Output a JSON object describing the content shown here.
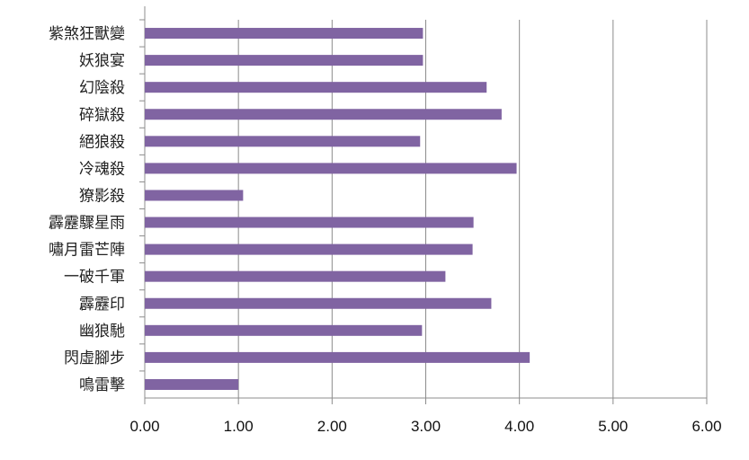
{
  "chart_data": {
    "type": "bar",
    "orientation": "horizontal",
    "title": "",
    "xlabel": "",
    "ylabel": "",
    "categories": [
      "紫煞狂獸變",
      "妖狼宴",
      "幻陰殺",
      "碎獄殺",
      "絕狼殺",
      "冷魂殺",
      "獠影殺",
      "霹靂驟星雨",
      "嘯月雷芒陣",
      "一破千軍",
      "霹靂印",
      "幽狼馳",
      "閃虛腳步",
      "鳴雷擊"
    ],
    "values": [
      2.97,
      2.97,
      3.65,
      3.81,
      2.94,
      3.97,
      1.05,
      3.51,
      3.5,
      3.21,
      3.7,
      2.96,
      4.11,
      1.0
    ],
    "xlim": [
      0,
      6
    ],
    "xticks": [
      "0.00",
      "1.00",
      "2.00",
      "3.00",
      "4.00",
      "5.00",
      "6.00"
    ],
    "grid": "vertical",
    "legend": "none",
    "bar_color": "#8064a2"
  }
}
